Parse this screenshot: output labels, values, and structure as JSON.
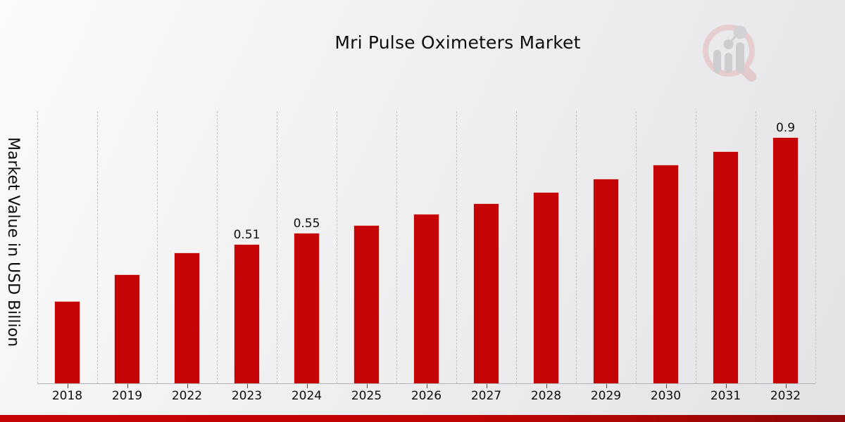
{
  "page": {
    "title": "Mri Pulse Oximeters Market"
  },
  "branding": {
    "watermark": "market-research-future-logo",
    "accent_red": "#c50505"
  },
  "chart_data": {
    "type": "bar",
    "title": "Mri Pulse Oximeters Market",
    "xlabel": "",
    "ylabel": "Market Value in USD Billion",
    "categories": [
      "2018",
      "2019",
      "2022",
      "2023",
      "2024",
      "2025",
      "2026",
      "2027",
      "2028",
      "2029",
      "2030",
      "2031",
      "2032"
    ],
    "values": [
      0.3,
      0.4,
      0.48,
      0.51,
      0.55,
      0.58,
      0.62,
      0.66,
      0.7,
      0.75,
      0.8,
      0.85,
      0.9
    ],
    "bar_labels": [
      "",
      "",
      "",
      "0.51",
      "0.55",
      "",
      "",
      "",
      "",
      "",
      "",
      "",
      "0.9"
    ],
    "bar_color": "#c50505",
    "ylim": [
      0,
      1.0
    ],
    "grid": "vertical-dashed-only",
    "legend": "none",
    "y_axis_ticks_visible": false
  },
  "footer": {
    "band_color": "#c50505"
  }
}
